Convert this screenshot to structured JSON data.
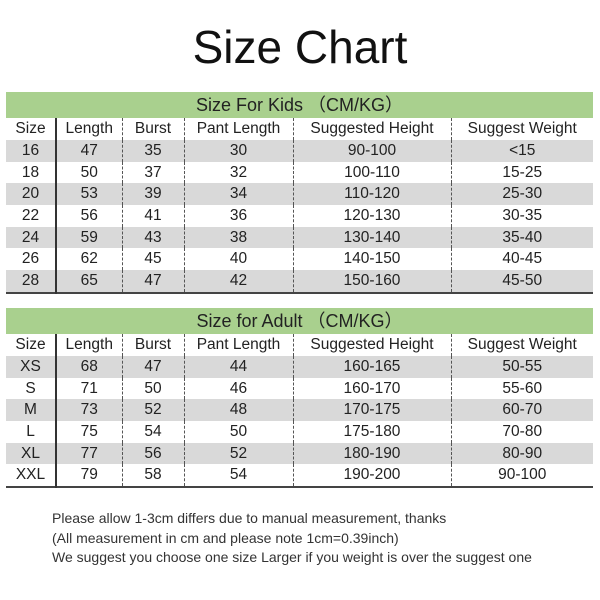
{
  "title": "Size Chart",
  "columns": [
    "Size",
    "Length",
    "Burst",
    "Pant Length",
    "Suggested Height",
    "Suggest Weight"
  ],
  "kids": {
    "heading": "Size For Kids （CM/KG）",
    "rows": [
      [
        "16",
        "47",
        "35",
        "30",
        "90-100",
        "<15"
      ],
      [
        "18",
        "50",
        "37",
        "32",
        "100-110",
        "15-25"
      ],
      [
        "20",
        "53",
        "39",
        "34",
        "110-120",
        "25-30"
      ],
      [
        "22",
        "56",
        "41",
        "36",
        "120-130",
        "30-35"
      ],
      [
        "24",
        "59",
        "43",
        "38",
        "130-140",
        "35-40"
      ],
      [
        "26",
        "62",
        "45",
        "40",
        "140-150",
        "40-45"
      ],
      [
        "28",
        "65",
        "47",
        "42",
        "150-160",
        "45-50"
      ]
    ]
  },
  "adult": {
    "heading": "Size for Adult （CM/KG）",
    "rows": [
      [
        "XS",
        "68",
        "47",
        "44",
        "160-165",
        "50-55"
      ],
      [
        "S",
        "71",
        "50",
        "46",
        "160-170",
        "55-60"
      ],
      [
        "M",
        "73",
        "52",
        "48",
        "170-175",
        "60-70"
      ],
      [
        "L",
        "75",
        "54",
        "50",
        "175-180",
        "70-80"
      ],
      [
        "XL",
        "77",
        "56",
        "52",
        "180-190",
        "80-90"
      ],
      [
        "XXL",
        "79",
        "58",
        "54",
        "190-200",
        "90-100"
      ]
    ]
  },
  "notes": [
    "Please allow 1-3cm differs due to manual measurement, thanks",
    "(All measurement in cm and please note 1cm=0.39inch)",
    "We suggest you choose one size Larger if you weight is over the suggest one"
  ],
  "colors": {
    "band": "#a9d08e",
    "stripe": "#d9d9d9"
  }
}
